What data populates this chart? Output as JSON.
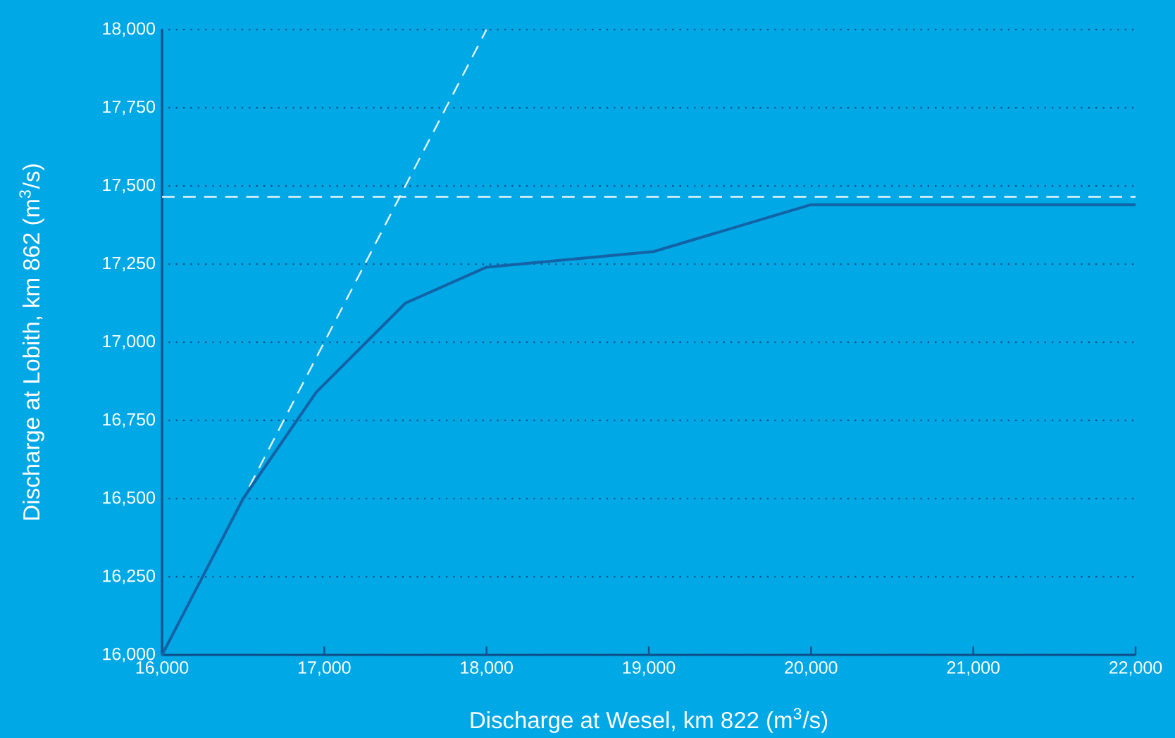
{
  "chart_data": {
    "type": "line",
    "xlabel": "Discharge at Wesel, km 822 (m$^{3}$/s)",
    "ylabel": "Discharge at Lobith, km 862 (m$^{3}$/s)",
    "xlim": [
      16000,
      22000
    ],
    "ylim": [
      16000,
      18000
    ],
    "xticks": [
      {
        "value": 16000,
        "label": "16,000"
      },
      {
        "value": 17000,
        "label": "17,000"
      },
      {
        "value": 18000,
        "label": "18,000"
      },
      {
        "value": 19000,
        "label": "19,000"
      },
      {
        "value": 20000,
        "label": "20,000"
      },
      {
        "value": 21000,
        "label": "21,000"
      },
      {
        "value": 22000,
        "label": "22,000"
      }
    ],
    "yticks": [
      {
        "value": 16000,
        "label": "16,000"
      },
      {
        "value": 16250,
        "label": "16,250"
      },
      {
        "value": 16500,
        "label": "16,500"
      },
      {
        "value": 16750,
        "label": "16,750"
      },
      {
        "value": 17000,
        "label": "17,000"
      },
      {
        "value": 17250,
        "label": "17,250"
      },
      {
        "value": 17500,
        "label": "17,500"
      },
      {
        "value": 17750,
        "label": "17,750"
      },
      {
        "value": 18000,
        "label": "18,000"
      }
    ],
    "grid": "y",
    "marker": "none",
    "series": [
      {
        "color": "#1462a6",
        "line_style": "solid",
        "x": [
          16000,
          16500,
          16950,
          17500,
          18000,
          19030,
          20000,
          22000
        ],
        "values": [
          16000,
          16500,
          16840,
          17125,
          17240,
          17290,
          17440,
          17440
        ]
      },
      {
        "type": "line",
        "color": "#e6f4fb",
        "line_style": "dashed",
        "x": [
          16000,
          18000
        ],
        "values": [
          16000,
          18000
        ]
      }
    ],
    "ref_lines": [
      {
        "axis": "y",
        "value": 17465,
        "color": "#e6f4fb",
        "line_style": "dashed"
      }
    ]
  }
}
